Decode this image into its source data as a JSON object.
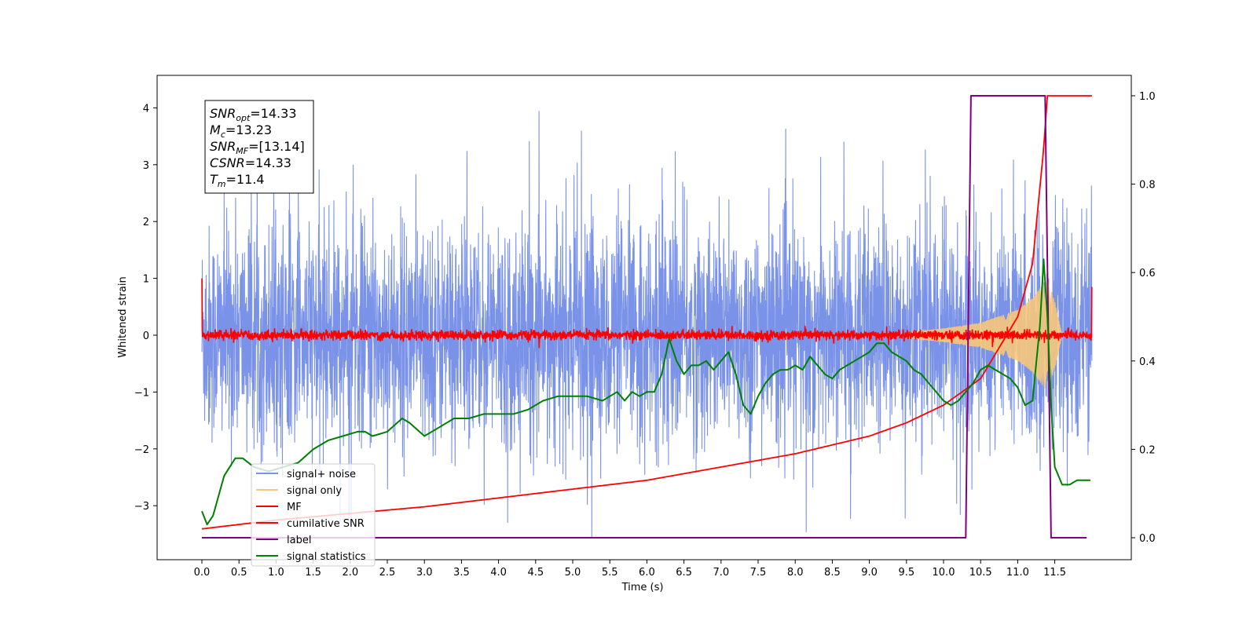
{
  "chart_data": {
    "type": "line",
    "xlabel": "Time (s)",
    "ylabel": "Whitened strain",
    "xlim": [
      -0.3,
      12.5
    ],
    "ylim": [
      -3.97,
      4.5
    ],
    "y2lim": [
      -0.05,
      1.05
    ],
    "x_ticks": [
      "0.0",
      "0.5",
      "1.0",
      "1.5",
      "2.0",
      "2.5",
      "3.0",
      "3.5",
      "4.0",
      "4.5",
      "5.0",
      "5.5",
      "6.0",
      "6.5",
      "7.0",
      "7.5",
      "8.0",
      "8.5",
      "9.0",
      "9.5",
      "10.0",
      "10.5",
      "11.0",
      "11.5"
    ],
    "y_ticks": [
      "−3",
      "−2",
      "−1",
      "0",
      "1",
      "2",
      "3",
      "4"
    ],
    "y2_ticks": [
      "0.0",
      "0.2",
      "0.4",
      "0.6",
      "0.8",
      "1.0"
    ],
    "annotation": {
      "lines": [
        {
          "var": "SNR",
          "sub": "opt",
          "val": "=14.33"
        },
        {
          "var": "M",
          "sub": "c",
          "val": "=13.23"
        },
        {
          "var": "SNR",
          "sub": "MF",
          "val": "=[13.14]"
        },
        {
          "var": "CSNR",
          "sub": "",
          "val": "=14.33"
        },
        {
          "var": "T",
          "sub": "m",
          "val": "=11.4"
        }
      ]
    },
    "legend": {
      "position": "lower left",
      "entries": [
        {
          "label": "signal+ noise",
          "color": "#7a93e8"
        },
        {
          "label": "signal only",
          "color": "#f7c87a"
        },
        {
          "label": "MF",
          "color": "#ff0000"
        },
        {
          "label": "cumilative SNR",
          "color": "#ff0000"
        },
        {
          "label": "label",
          "color": "#800080"
        },
        {
          "label": "signal statistics",
          "color": "#008000"
        }
      ]
    },
    "series": [
      {
        "name": "signal+ noise",
        "axis": "left",
        "color": "#7a93e8",
        "description_envelope": {
          "typical_max": 2.2,
          "typical_min": -2.2,
          "peak_max": 4.15,
          "peak_min": -3.55
        },
        "x_range": [
          0.0,
          12.0
        ]
      },
      {
        "name": "signal only",
        "axis": "left",
        "color": "#f7c87a",
        "envelope_x": [
          9.5,
          10.0,
          10.5,
          11.0,
          11.2,
          11.4,
          11.5,
          11.6
        ],
        "envelope_amp": [
          0.05,
          0.12,
          0.22,
          0.45,
          0.65,
          1.0,
          0.6,
          0.0
        ]
      },
      {
        "name": "MF",
        "axis": "left",
        "color": "#ff0000",
        "x_range": [
          0.0,
          12.0
        ],
        "level": 0.0,
        "noise_amp": 0.08,
        "edges": {
          "start": 1.0,
          "end": 0.85
        }
      },
      {
        "name": "cumilative SNR",
        "axis": "right",
        "color": "#ff0000",
        "x": [
          0.0,
          1.0,
          2.0,
          3.0,
          4.0,
          5.0,
          6.0,
          7.0,
          8.0,
          9.0,
          9.5,
          10.0,
          10.5,
          11.0,
          11.2,
          11.35,
          11.4,
          11.45,
          12.0
        ],
        "values": [
          0.02,
          0.04,
          0.055,
          0.07,
          0.09,
          0.11,
          0.13,
          0.16,
          0.19,
          0.23,
          0.26,
          0.3,
          0.36,
          0.5,
          0.62,
          0.88,
          1.0,
          1.0,
          1.0
        ]
      },
      {
        "name": "label",
        "axis": "right",
        "color": "#800080",
        "x": [
          0.0,
          10.3,
          10.37,
          11.37,
          11.45,
          11.93
        ],
        "values": [
          0.0,
          0.0,
          1.0,
          1.0,
          0.0,
          0.0
        ]
      },
      {
        "name": "signal statistics",
        "axis": "right",
        "color": "#008000",
        "x": [
          0.0,
          0.07,
          0.15,
          0.3,
          0.45,
          0.55,
          0.7,
          0.9,
          1.1,
          1.3,
          1.5,
          1.7,
          1.9,
          2.1,
          2.2,
          2.3,
          2.5,
          2.7,
          2.8,
          3.0,
          3.2,
          3.4,
          3.6,
          3.8,
          4.0,
          4.2,
          4.4,
          4.6,
          4.8,
          5.0,
          5.2,
          5.4,
          5.5,
          5.6,
          5.7,
          5.8,
          5.9,
          6.0,
          6.1,
          6.2,
          6.3,
          6.4,
          6.5,
          6.6,
          6.7,
          6.8,
          6.9,
          7.0,
          7.1,
          7.2,
          7.3,
          7.4,
          7.5,
          7.6,
          7.7,
          7.8,
          7.9,
          8.0,
          8.1,
          8.2,
          8.3,
          8.4,
          8.5,
          8.6,
          8.7,
          8.8,
          8.9,
          9.0,
          9.1,
          9.2,
          9.3,
          9.4,
          9.5,
          9.6,
          9.7,
          9.8,
          9.9,
          10.0,
          10.1,
          10.2,
          10.3,
          10.4,
          10.5,
          10.6,
          10.7,
          10.8,
          10.9,
          11.0,
          11.1,
          11.2,
          11.3,
          11.35,
          11.4,
          11.45,
          11.5,
          11.6,
          11.7,
          11.8,
          11.9,
          11.98
        ],
        "values": [
          0.06,
          0.03,
          0.05,
          0.14,
          0.18,
          0.18,
          0.16,
          0.15,
          0.16,
          0.17,
          0.2,
          0.22,
          0.23,
          0.24,
          0.24,
          0.23,
          0.24,
          0.27,
          0.26,
          0.23,
          0.25,
          0.27,
          0.27,
          0.28,
          0.28,
          0.28,
          0.29,
          0.31,
          0.32,
          0.32,
          0.32,
          0.31,
          0.32,
          0.33,
          0.31,
          0.33,
          0.32,
          0.33,
          0.33,
          0.37,
          0.45,
          0.4,
          0.37,
          0.39,
          0.39,
          0.4,
          0.38,
          0.4,
          0.42,
          0.37,
          0.3,
          0.28,
          0.32,
          0.35,
          0.37,
          0.38,
          0.38,
          0.39,
          0.38,
          0.41,
          0.39,
          0.37,
          0.36,
          0.38,
          0.39,
          0.4,
          0.41,
          0.42,
          0.44,
          0.44,
          0.42,
          0.41,
          0.4,
          0.38,
          0.37,
          0.35,
          0.33,
          0.31,
          0.3,
          0.31,
          0.33,
          0.35,
          0.38,
          0.39,
          0.38,
          0.37,
          0.36,
          0.34,
          0.3,
          0.31,
          0.48,
          0.63,
          0.5,
          0.3,
          0.16,
          0.12,
          0.12,
          0.13,
          0.13,
          0.13
        ]
      }
    ]
  }
}
